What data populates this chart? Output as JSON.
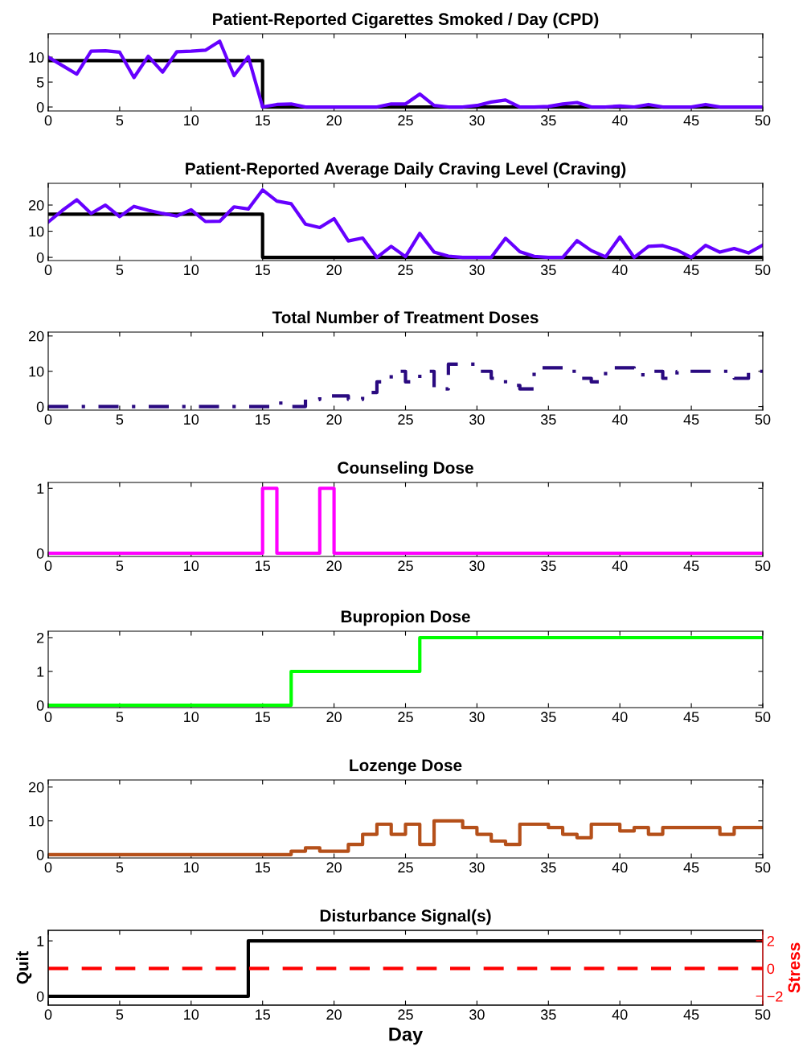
{
  "chart_data": [
    {
      "type": "line",
      "title": "Patient-Reported Cigarettes Smoked / Day (CPD)",
      "xlim": [
        0,
        50
      ],
      "xticks": [
        0,
        5,
        10,
        15,
        20,
        25,
        30,
        35,
        40,
        45,
        50
      ],
      "ylim": [
        -0.8,
        14.7
      ],
      "yticks": [
        0,
        5,
        10
      ],
      "series": [
        {
          "color": "#000000",
          "x": [
            0,
            15,
            15,
            50
          ],
          "values": [
            9.3,
            9.3,
            0,
            0
          ]
        },
        {
          "color": "#6600ff",
          "x": [
            0,
            1,
            2,
            3,
            4,
            5,
            6,
            7,
            8,
            9,
            10,
            11,
            12,
            13,
            14,
            15,
            16,
            17,
            18,
            19,
            20,
            21,
            22,
            23,
            24,
            25,
            26,
            27,
            28,
            29,
            30,
            31,
            32,
            33,
            34,
            35,
            36,
            37,
            38,
            39,
            40,
            41,
            42,
            43,
            44,
            45,
            46,
            47,
            48,
            49,
            50
          ],
          "values": [
            10,
            8.3,
            6.6,
            11.2,
            11.3,
            11,
            5.9,
            10.2,
            7,
            11.1,
            11.2,
            11.4,
            13.2,
            6.3,
            10.1,
            0,
            0.5,
            0.6,
            0,
            0,
            0,
            0,
            0,
            0,
            0.6,
            0.6,
            2.6,
            0.3,
            0,
            0,
            0.3,
            1,
            1.4,
            0,
            0,
            0.1,
            0.6,
            0.9,
            0,
            0,
            0.2,
            0,
            0.5,
            0,
            0,
            0,
            0.5,
            0,
            0,
            0,
            0
          ]
        }
      ]
    },
    {
      "type": "line",
      "title": "Patient-Reported Average Daily Craving Level (Craving)",
      "xlim": [
        0,
        50
      ],
      "xticks": [
        0,
        5,
        10,
        15,
        20,
        25,
        30,
        35,
        40,
        45,
        50
      ],
      "ylim": [
        -1.2,
        28.3
      ],
      "yticks": [
        0,
        10,
        20
      ],
      "series": [
        {
          "color": "#000000",
          "x": [
            0,
            15,
            15,
            50
          ],
          "values": [
            16.5,
            16.5,
            0,
            0
          ]
        },
        {
          "color": "#6600ff",
          "x": [
            0,
            1,
            2,
            3,
            4,
            5,
            6,
            7,
            8,
            9,
            10,
            11,
            12,
            13,
            14,
            15,
            16,
            17,
            18,
            19,
            20,
            21,
            22,
            23,
            24,
            25,
            26,
            27,
            28,
            29,
            30,
            31,
            32,
            33,
            34,
            35,
            36,
            37,
            38,
            39,
            40,
            41,
            42,
            43,
            44,
            45,
            46,
            47,
            48,
            49,
            50
          ],
          "values": [
            13.5,
            18,
            22,
            16.8,
            20,
            15.6,
            19.5,
            18,
            16.8,
            15.8,
            18.2,
            13.7,
            13.8,
            19.3,
            18.5,
            25.8,
            21.5,
            20.5,
            12.7,
            11.4,
            14.8,
            6.3,
            7.4,
            0,
            4.2,
            0.3,
            9.2,
            2,
            0.5,
            0,
            0,
            0,
            7.3,
            2.2,
            0.4,
            0,
            0,
            6.4,
            2.6,
            0.2,
            7.8,
            0,
            4.2,
            4.5,
            2.8,
            0,
            4.6,
            2,
            3.4,
            1.7,
            4.7
          ]
        }
      ]
    },
    {
      "type": "step",
      "title": "Total Number of Treatment Doses",
      "xlim": [
        0,
        50
      ],
      "xticks": [
        0,
        5,
        10,
        15,
        20,
        25,
        30,
        35,
        40,
        45,
        50
      ],
      "ylim": [
        -1,
        21.1
      ],
      "yticks": [
        0,
        10,
        20
      ],
      "line_style": "dashdot",
      "series": [
        {
          "color": "#2a0a80",
          "x": [
            0,
            16,
            17,
            18,
            19,
            21,
            22,
            23,
            24,
            25,
            26,
            27,
            28,
            30,
            31,
            32,
            33,
            34,
            36,
            37,
            38,
            39,
            41,
            42,
            43,
            44,
            48,
            49,
            50
          ],
          "values": [
            0,
            1,
            0,
            2,
            3,
            2,
            4,
            7,
            10,
            7,
            10,
            5,
            12,
            10,
            8,
            6,
            5,
            11,
            10,
            8,
            7,
            11,
            9,
            10,
            8,
            10,
            8,
            10,
            10
          ]
        }
      ]
    },
    {
      "type": "step",
      "title": "Counseling Dose",
      "xlim": [
        0,
        50
      ],
      "xticks": [
        0,
        5,
        10,
        15,
        20,
        25,
        30,
        35,
        40,
        45,
        50
      ],
      "ylim": [
        -0.05,
        1.09
      ],
      "yticks": [
        0,
        1
      ],
      "series": [
        {
          "color": "#ff00ff",
          "x": [
            0,
            15,
            16,
            19,
            20,
            50
          ],
          "values": [
            0,
            1,
            0,
            1,
            0,
            0
          ]
        }
      ]
    },
    {
      "type": "step",
      "title": "Bupropion Dose",
      "xlim": [
        0,
        50
      ],
      "xticks": [
        0,
        5,
        10,
        15,
        20,
        25,
        30,
        35,
        40,
        45,
        50
      ],
      "ylim": [
        -0.07,
        2.19
      ],
      "yticks": [
        0,
        1,
        2
      ],
      "series": [
        {
          "color": "#00ff00",
          "x": [
            0,
            17,
            26,
            50
          ],
          "values": [
            0,
            1,
            2,
            2
          ]
        }
      ]
    },
    {
      "type": "step",
      "title": "Lozenge Dose",
      "xlim": [
        0,
        50
      ],
      "xticks": [
        0,
        5,
        10,
        15,
        20,
        25,
        30,
        35,
        40,
        45,
        50
      ],
      "ylim": [
        -1,
        22.1
      ],
      "yticks": [
        0,
        10,
        20
      ],
      "series": [
        {
          "color": "#b5501a",
          "x": [
            0,
            17,
            18,
            19,
            21,
            22,
            23,
            24,
            25,
            26,
            27,
            29,
            30,
            31,
            32,
            33,
            35,
            36,
            37,
            38,
            40,
            41,
            42,
            43,
            47,
            48,
            50
          ],
          "values": [
            0,
            1,
            2,
            1,
            3,
            6,
            9,
            6,
            9,
            3,
            10,
            8,
            6,
            4,
            3,
            9,
            8,
            6,
            5,
            9,
            7,
            8,
            6,
            8,
            6,
            8,
            8
          ]
        }
      ]
    },
    {
      "type": "step",
      "title": "Disturbance Signal(s)",
      "xlabel": "Day",
      "ylabel": "Quit",
      "y2label": "Stress",
      "xlim": [
        0,
        50
      ],
      "xticks": [
        0,
        5,
        10,
        15,
        20,
        25,
        30,
        35,
        40,
        45,
        50
      ],
      "ylim": [
        -0.16,
        1.19
      ],
      "yticks": [
        0,
        1
      ],
      "y2lim": [
        -2.64,
        2.75
      ],
      "y2ticks": [
        {
          "value": -2,
          "label": "−2"
        },
        0,
        2
      ],
      "series": [
        {
          "color": "#000000",
          "x": [
            0,
            14,
            50
          ],
          "values": [
            0,
            1,
            1
          ]
        },
        {
          "type": "line",
          "axis": "y2",
          "line_style": "dashed",
          "color": "#ff0000",
          "x": [
            0,
            50
          ],
          "values": [
            0,
            0
          ]
        }
      ]
    }
  ]
}
